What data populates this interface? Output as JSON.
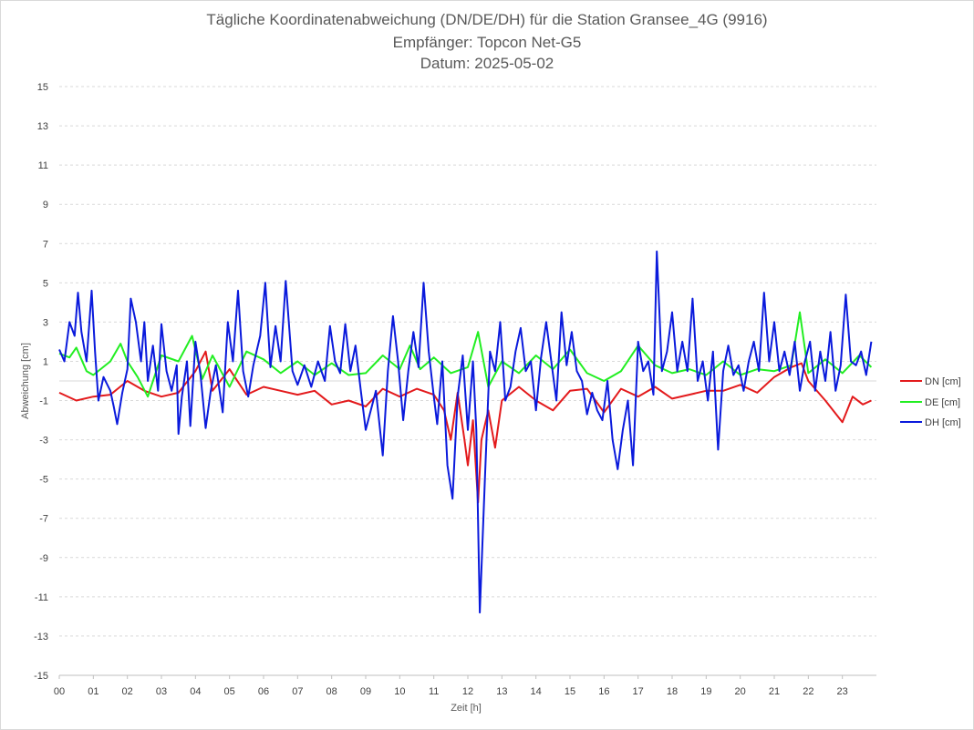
{
  "chart_data": {
    "type": "line",
    "title": "Tägliche Koordinatenabweichung (DN/DE/DH) für die Station Gransee_4G (9916)",
    "subtitle_lines": [
      "Empfänger: Topcon Net-G5",
      "Datum: 2025-05-02"
    ],
    "xlabel": "Zeit [h]",
    "ylabel": "Abweichung [cm]",
    "xlim": [
      0,
      24
    ],
    "ylim": [
      -15,
      15
    ],
    "x_ticks": [
      "00",
      "01",
      "02",
      "03",
      "04",
      "05",
      "06",
      "07",
      "08",
      "09",
      "10",
      "11",
      "12",
      "13",
      "14",
      "15",
      "16",
      "17",
      "18",
      "19",
      "20",
      "21",
      "22",
      "23"
    ],
    "y_ticks": [
      15,
      13,
      11,
      9,
      7,
      5,
      3,
      1,
      -1,
      -3,
      -5,
      -7,
      -9,
      -11,
      -13,
      -15
    ],
    "grid": "horizontal dashed",
    "legend_position": "right",
    "series": [
      {
        "name": "DN [cm]",
        "color": "#e31a1c",
        "points": [
          [
            0.0,
            -0.6
          ],
          [
            0.5,
            -1.0
          ],
          [
            1.0,
            -0.8
          ],
          [
            1.5,
            -0.7
          ],
          [
            2.0,
            0.0
          ],
          [
            2.5,
            -0.5
          ],
          [
            3.0,
            -0.8
          ],
          [
            3.5,
            -0.6
          ],
          [
            4.0,
            0.5
          ],
          [
            4.3,
            1.5
          ],
          [
            4.5,
            -0.5
          ],
          [
            5.0,
            0.6
          ],
          [
            5.5,
            -0.7
          ],
          [
            6.0,
            -0.3
          ],
          [
            6.5,
            -0.5
          ],
          [
            7.0,
            -0.7
          ],
          [
            7.5,
            -0.5
          ],
          [
            8.0,
            -1.2
          ],
          [
            8.5,
            -1.0
          ],
          [
            9.0,
            -1.3
          ],
          [
            9.5,
            -0.4
          ],
          [
            10.0,
            -0.8
          ],
          [
            10.5,
            -0.4
          ],
          [
            11.0,
            -0.7
          ],
          [
            11.3,
            -1.5
          ],
          [
            11.5,
            -3.0
          ],
          [
            11.7,
            -0.6
          ],
          [
            11.9,
            -3.0
          ],
          [
            12.0,
            -4.3
          ],
          [
            12.15,
            -2.0
          ],
          [
            12.3,
            -6.2
          ],
          [
            12.4,
            -3.0
          ],
          [
            12.6,
            -1.5
          ],
          [
            12.8,
            -3.4
          ],
          [
            13.0,
            -1.0
          ],
          [
            13.5,
            -0.3
          ],
          [
            14.0,
            -1.0
          ],
          [
            14.5,
            -1.5
          ],
          [
            15.0,
            -0.5
          ],
          [
            15.5,
            -0.4
          ],
          [
            16.0,
            -1.6
          ],
          [
            16.5,
            -0.4
          ],
          [
            17.0,
            -0.8
          ],
          [
            17.5,
            -0.3
          ],
          [
            18.0,
            -0.9
          ],
          [
            18.5,
            -0.7
          ],
          [
            19.0,
            -0.5
          ],
          [
            19.5,
            -0.5
          ],
          [
            20.0,
            -0.2
          ],
          [
            20.5,
            -0.6
          ],
          [
            21.0,
            0.2
          ],
          [
            21.5,
            0.7
          ],
          [
            21.8,
            0.9
          ],
          [
            22.0,
            0.0
          ],
          [
            22.5,
            -1.0
          ],
          [
            23.0,
            -2.1
          ],
          [
            23.3,
            -0.8
          ],
          [
            23.6,
            -1.2
          ],
          [
            23.85,
            -1.0
          ]
        ]
      },
      {
        "name": "DE [cm]",
        "color": "#22ee22",
        "points": [
          [
            0.0,
            1.4
          ],
          [
            0.3,
            1.2
          ],
          [
            0.5,
            1.7
          ],
          [
            0.8,
            0.5
          ],
          [
            1.0,
            0.3
          ],
          [
            1.5,
            1.0
          ],
          [
            1.8,
            1.9
          ],
          [
            2.0,
            1.0
          ],
          [
            2.3,
            0.2
          ],
          [
            2.6,
            -0.8
          ],
          [
            3.0,
            1.3
          ],
          [
            3.5,
            1.0
          ],
          [
            3.9,
            2.3
          ],
          [
            4.2,
            0.1
          ],
          [
            4.5,
            1.3
          ],
          [
            5.0,
            -0.3
          ],
          [
            5.5,
            1.5
          ],
          [
            6.0,
            1.1
          ],
          [
            6.5,
            0.4
          ],
          [
            7.0,
            1.0
          ],
          [
            7.5,
            0.3
          ],
          [
            8.0,
            0.9
          ],
          [
            8.5,
            0.3
          ],
          [
            9.0,
            0.4
          ],
          [
            9.5,
            1.3
          ],
          [
            10.0,
            0.6
          ],
          [
            10.3,
            1.8
          ],
          [
            10.6,
            0.6
          ],
          [
            11.0,
            1.2
          ],
          [
            11.5,
            0.4
          ],
          [
            12.0,
            0.7
          ],
          [
            12.3,
            2.5
          ],
          [
            12.6,
            -0.3
          ],
          [
            13.0,
            1.0
          ],
          [
            13.5,
            0.4
          ],
          [
            14.0,
            1.3
          ],
          [
            14.5,
            0.6
          ],
          [
            15.0,
            1.6
          ],
          [
            15.5,
            0.4
          ],
          [
            16.0,
            0.0
          ],
          [
            16.5,
            0.5
          ],
          [
            17.0,
            1.8
          ],
          [
            17.5,
            0.8
          ],
          [
            18.0,
            0.4
          ],
          [
            18.5,
            0.6
          ],
          [
            19.0,
            0.3
          ],
          [
            19.5,
            1.0
          ],
          [
            20.0,
            0.3
          ],
          [
            20.5,
            0.6
          ],
          [
            21.0,
            0.5
          ],
          [
            21.5,
            0.8
          ],
          [
            21.75,
            3.5
          ],
          [
            22.0,
            0.4
          ],
          [
            22.5,
            1.1
          ],
          [
            23.0,
            0.4
          ],
          [
            23.5,
            1.3
          ],
          [
            23.85,
            0.7
          ]
        ]
      },
      {
        "name": "DH [cm]",
        "color": "#0a1adc",
        "points": [
          [
            0.0,
            1.6
          ],
          [
            0.15,
            1.0
          ],
          [
            0.3,
            3.0
          ],
          [
            0.45,
            2.3
          ],
          [
            0.55,
            4.5
          ],
          [
            0.65,
            2.5
          ],
          [
            0.8,
            1.0
          ],
          [
            0.95,
            4.6
          ],
          [
            1.05,
            1.5
          ],
          [
            1.15,
            -1.0
          ],
          [
            1.3,
            0.2
          ],
          [
            1.5,
            -0.5
          ],
          [
            1.6,
            -1.3
          ],
          [
            1.7,
            -2.2
          ],
          [
            1.85,
            -0.6
          ],
          [
            2.0,
            0.6
          ],
          [
            2.1,
            4.2
          ],
          [
            2.25,
            3.0
          ],
          [
            2.4,
            1.0
          ],
          [
            2.5,
            3.0
          ],
          [
            2.6,
            0.0
          ],
          [
            2.75,
            1.8
          ],
          [
            2.9,
            -0.5
          ],
          [
            3.0,
            2.9
          ],
          [
            3.15,
            0.5
          ],
          [
            3.3,
            -0.5
          ],
          [
            3.45,
            0.8
          ],
          [
            3.5,
            -2.7
          ],
          [
            3.6,
            -0.8
          ],
          [
            3.75,
            1.0
          ],
          [
            3.85,
            -2.3
          ],
          [
            4.0,
            2.0
          ],
          [
            4.15,
            0.3
          ],
          [
            4.3,
            -2.4
          ],
          [
            4.45,
            -0.5
          ],
          [
            4.6,
            0.8
          ],
          [
            4.8,
            -1.6
          ],
          [
            4.95,
            3.0
          ],
          [
            5.1,
            1.0
          ],
          [
            5.25,
            4.6
          ],
          [
            5.4,
            0.5
          ],
          [
            5.55,
            -0.8
          ],
          [
            5.7,
            0.8
          ],
          [
            5.9,
            2.3
          ],
          [
            6.05,
            5.0
          ],
          [
            6.2,
            0.7
          ],
          [
            6.35,
            2.8
          ],
          [
            6.5,
            1.0
          ],
          [
            6.65,
            5.1
          ],
          [
            6.85,
            0.5
          ],
          [
            7.0,
            -0.2
          ],
          [
            7.2,
            0.8
          ],
          [
            7.4,
            -0.3
          ],
          [
            7.6,
            1.0
          ],
          [
            7.8,
            0.0
          ],
          [
            7.95,
            2.8
          ],
          [
            8.1,
            1.0
          ],
          [
            8.25,
            0.4
          ],
          [
            8.4,
            2.9
          ],
          [
            8.55,
            0.5
          ],
          [
            8.7,
            1.8
          ],
          [
            8.85,
            -0.4
          ],
          [
            9.0,
            -2.5
          ],
          [
            9.15,
            -1.5
          ],
          [
            9.3,
            -0.5
          ],
          [
            9.5,
            -3.8
          ],
          [
            9.65,
            0.5
          ],
          [
            9.8,
            3.3
          ],
          [
            9.95,
            1.0
          ],
          [
            10.1,
            -2.0
          ],
          [
            10.25,
            0.5
          ],
          [
            10.4,
            2.5
          ],
          [
            10.55,
            0.7
          ],
          [
            10.7,
            5.0
          ],
          [
            10.85,
            1.5
          ],
          [
            11.0,
            -0.8
          ],
          [
            11.1,
            -2.2
          ],
          [
            11.25,
            1.0
          ],
          [
            11.4,
            -4.3
          ],
          [
            11.55,
            -6.0
          ],
          [
            11.7,
            -0.8
          ],
          [
            11.85,
            1.3
          ],
          [
            12.0,
            -2.5
          ],
          [
            12.15,
            1.0
          ],
          [
            12.25,
            -2.5
          ],
          [
            12.35,
            -11.8
          ],
          [
            12.5,
            -5.0
          ],
          [
            12.65,
            1.5
          ],
          [
            12.8,
            0.5
          ],
          [
            12.95,
            3.0
          ],
          [
            13.1,
            -1.0
          ],
          [
            13.25,
            -0.3
          ],
          [
            13.4,
            1.5
          ],
          [
            13.55,
            2.7
          ],
          [
            13.7,
            0.5
          ],
          [
            13.85,
            1.0
          ],
          [
            14.0,
            -1.5
          ],
          [
            14.15,
            1.2
          ],
          [
            14.3,
            3.0
          ],
          [
            14.45,
            1.0
          ],
          [
            14.6,
            -1.0
          ],
          [
            14.75,
            3.5
          ],
          [
            14.9,
            0.8
          ],
          [
            15.05,
            2.5
          ],
          [
            15.2,
            0.5
          ],
          [
            15.35,
            0.0
          ],
          [
            15.5,
            -1.7
          ],
          [
            15.65,
            -0.6
          ],
          [
            15.8,
            -1.5
          ],
          [
            15.95,
            -2.0
          ],
          [
            16.1,
            0.0
          ],
          [
            16.25,
            -3.0
          ],
          [
            16.4,
            -4.5
          ],
          [
            16.55,
            -2.5
          ],
          [
            16.7,
            -1.0
          ],
          [
            16.85,
            -4.3
          ],
          [
            17.0,
            2.0
          ],
          [
            17.15,
            0.5
          ],
          [
            17.3,
            1.0
          ],
          [
            17.45,
            -0.7
          ],
          [
            17.55,
            6.6
          ],
          [
            17.7,
            0.5
          ],
          [
            17.85,
            1.5
          ],
          [
            18.0,
            3.5
          ],
          [
            18.15,
            0.5
          ],
          [
            18.3,
            2.0
          ],
          [
            18.45,
            0.5
          ],
          [
            18.6,
            4.2
          ],
          [
            18.75,
            0.0
          ],
          [
            18.9,
            1.0
          ],
          [
            19.05,
            -1.0
          ],
          [
            19.2,
            1.5
          ],
          [
            19.35,
            -3.5
          ],
          [
            19.5,
            0.5
          ],
          [
            19.65,
            1.8
          ],
          [
            19.8,
            0.3
          ],
          [
            19.95,
            0.8
          ],
          [
            20.1,
            -0.5
          ],
          [
            20.25,
            1.0
          ],
          [
            20.4,
            2.0
          ],
          [
            20.55,
            0.5
          ],
          [
            20.7,
            4.5
          ],
          [
            20.85,
            1.0
          ],
          [
            21.0,
            3.0
          ],
          [
            21.15,
            0.5
          ],
          [
            21.3,
            1.5
          ],
          [
            21.45,
            0.3
          ],
          [
            21.6,
            2.0
          ],
          [
            21.75,
            -0.5
          ],
          [
            21.9,
            1.0
          ],
          [
            22.05,
            2.0
          ],
          [
            22.2,
            -0.5
          ],
          [
            22.35,
            1.5
          ],
          [
            22.5,
            0.0
          ],
          [
            22.65,
            2.5
          ],
          [
            22.8,
            -0.5
          ],
          [
            22.95,
            0.8
          ],
          [
            23.1,
            4.4
          ],
          [
            23.25,
            1.0
          ],
          [
            23.4,
            0.8
          ],
          [
            23.55,
            1.5
          ],
          [
            23.7,
            0.3
          ],
          [
            23.85,
            2.0
          ]
        ]
      }
    ]
  }
}
